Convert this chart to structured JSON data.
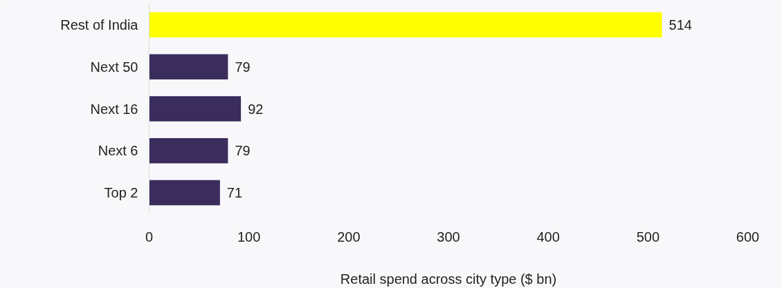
{
  "chart_data": {
    "type": "bar",
    "orientation": "horizontal",
    "xlabel": "Retail spend across city type ($ bn)",
    "categories": [
      "Rest of India",
      "Next 50",
      "Next 16",
      "Next 6",
      "Top 2"
    ],
    "values": [
      514,
      79,
      92,
      79,
      71
    ],
    "colors": [
      "#ffff00",
      "#3a2c5c",
      "#3a2c5c",
      "#3a2c5c",
      "#3a2c5c"
    ],
    "xlim": [
      0,
      600
    ],
    "xticks": [
      0,
      100,
      200,
      300,
      400,
      500,
      600
    ],
    "data_labels": true,
    "grid": false
  }
}
